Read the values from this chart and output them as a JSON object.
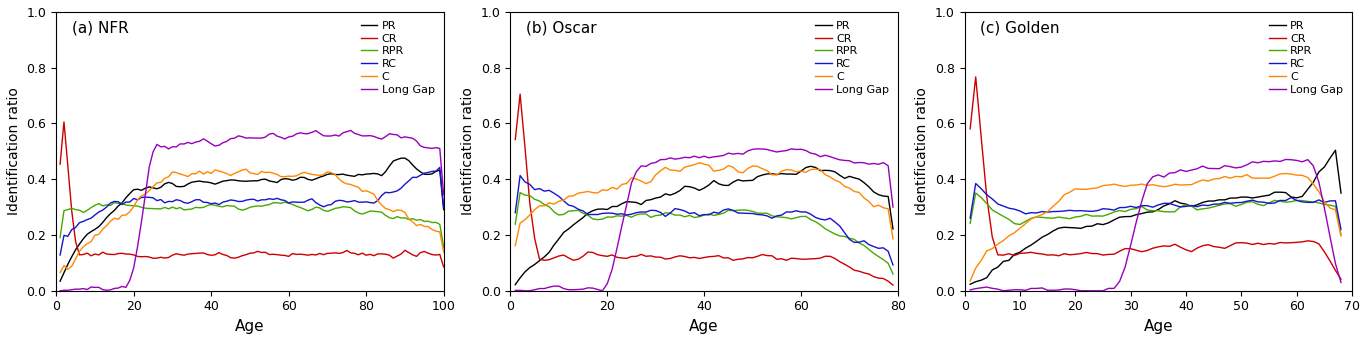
{
  "panels": [
    {
      "label": "(a) NFR",
      "xmax": 100,
      "xticks": [
        0,
        20,
        40,
        60,
        80,
        100
      ]
    },
    {
      "label": "(b) Oscar",
      "xmax": 80,
      "xticks": [
        0,
        20,
        40,
        60,
        80
      ]
    },
    {
      "label": "(c) Golden",
      "xmax": 70,
      "xticks": [
        0,
        10,
        20,
        30,
        40,
        50,
        60,
        70
      ]
    }
  ],
  "colors": {
    "PR": "#000000",
    "CR": "#cc0000",
    "RPR": "#44aa00",
    "RC": "#1515cc",
    "C": "#ff8800",
    "Long Gap": "#9900bb"
  },
  "legend_labels": [
    "PR",
    "CR",
    "RPR",
    "RC",
    "C",
    "Long Gap"
  ],
  "ylabel": "Identification ratio",
  "xlabel": "Age",
  "ylim": [
    0.0,
    1.0
  ],
  "yticks": [
    0.0,
    0.2,
    0.4,
    0.6,
    0.8,
    1.0
  ]
}
